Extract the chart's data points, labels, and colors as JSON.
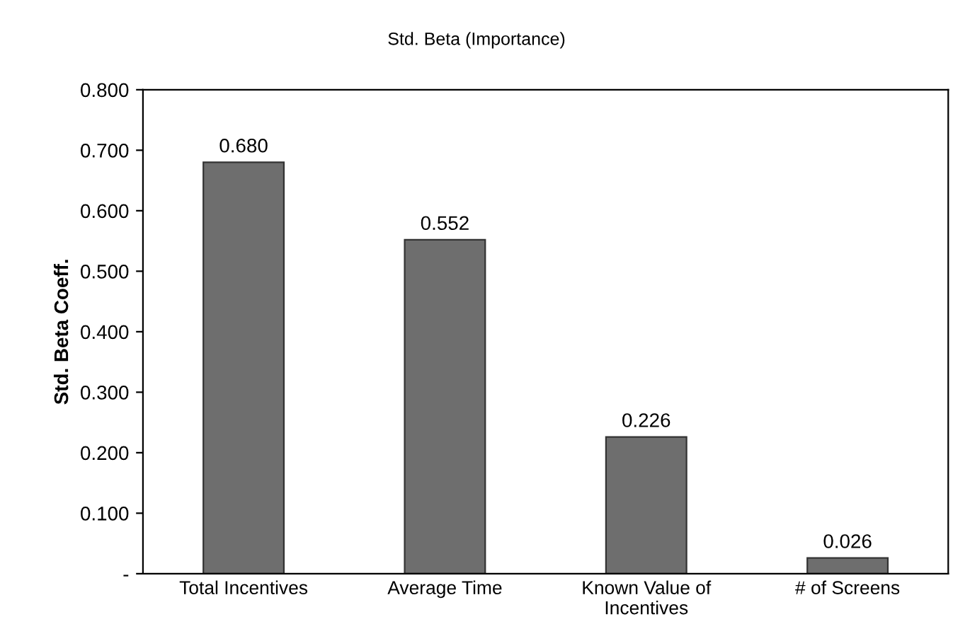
{
  "chart_data": {
    "type": "bar",
    "title": "Std. Beta (Importance)",
    "ylabel": "Std. Beta Coeff.",
    "categories": [
      "Total Incentives",
      "Average Time",
      "Known Value of\nIncentives",
      "# of Screens"
    ],
    "values": [
      0.68,
      0.552,
      0.226,
      0.026
    ],
    "value_labels": [
      "0.680",
      "0.552",
      "0.226",
      "0.026"
    ],
    "color": "#6e6e6e",
    "ylim": [
      0,
      0.8
    ],
    "yticks": [
      {
        "value": 0,
        "label": "-"
      },
      {
        "value": 0.1,
        "label": "0.100"
      },
      {
        "value": 0.2,
        "label": "0.200"
      },
      {
        "value": 0.3,
        "label": "0.300"
      },
      {
        "value": 0.4,
        "label": "0.400"
      },
      {
        "value": 0.5,
        "label": "0.500"
      },
      {
        "value": 0.6,
        "label": "0.600"
      },
      {
        "value": 0.7,
        "label": "0.700"
      },
      {
        "value": 0.8,
        "label": "0.800"
      }
    ],
    "grid": false,
    "legend": false
  }
}
